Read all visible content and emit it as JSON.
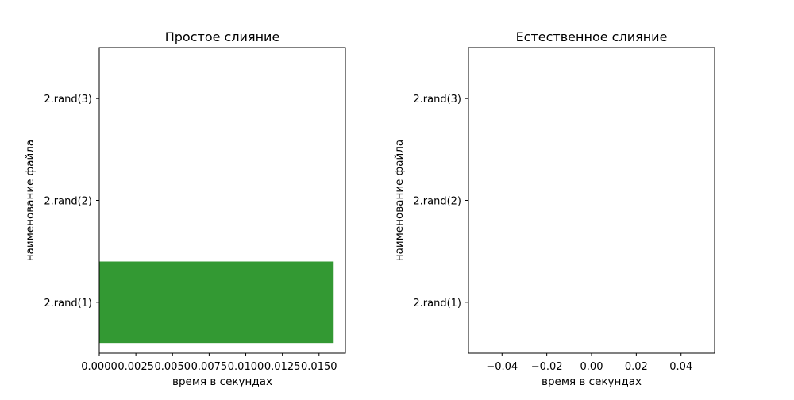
{
  "chart_data": [
    {
      "type": "bar",
      "orientation": "horizontal",
      "title": "Простое слияние",
      "xlabel": "время в секундах",
      "ylabel": "наименование файла",
      "categories": [
        "2.rand(1)",
        "2.rand(2)",
        "2.rand(3)"
      ],
      "values": [
        0.016,
        null,
        null
      ],
      "xlim": [
        0,
        0.0168
      ],
      "xticks": [
        0,
        0.0025,
        0.005,
        0.0075,
        0.01,
        0.0125,
        0.015
      ],
      "xtick_labels": [
        "0.0000",
        "0.0025",
        "0.0050",
        "0.0075",
        "0.0100",
        "0.0125",
        "0.0150"
      ],
      "bar_color": "#339933",
      "grid": false
    },
    {
      "type": "bar",
      "orientation": "horizontal",
      "title": "Естественное слияние",
      "xlabel": "время в секундах",
      "ylabel": "наименование файла",
      "categories": [
        "2.rand(1)",
        "2.rand(2)",
        "2.rand(3)"
      ],
      "values": [
        null,
        null,
        null
      ],
      "xlim": [
        -0.055,
        0.055
      ],
      "xticks": [
        -0.04,
        -0.02,
        0,
        0.02,
        0.04
      ],
      "xtick_labels": [
        "−0.04",
        "−0.02",
        "0.00",
        "0.02",
        "0.04"
      ],
      "bar_color": "#339933",
      "grid": false
    }
  ]
}
